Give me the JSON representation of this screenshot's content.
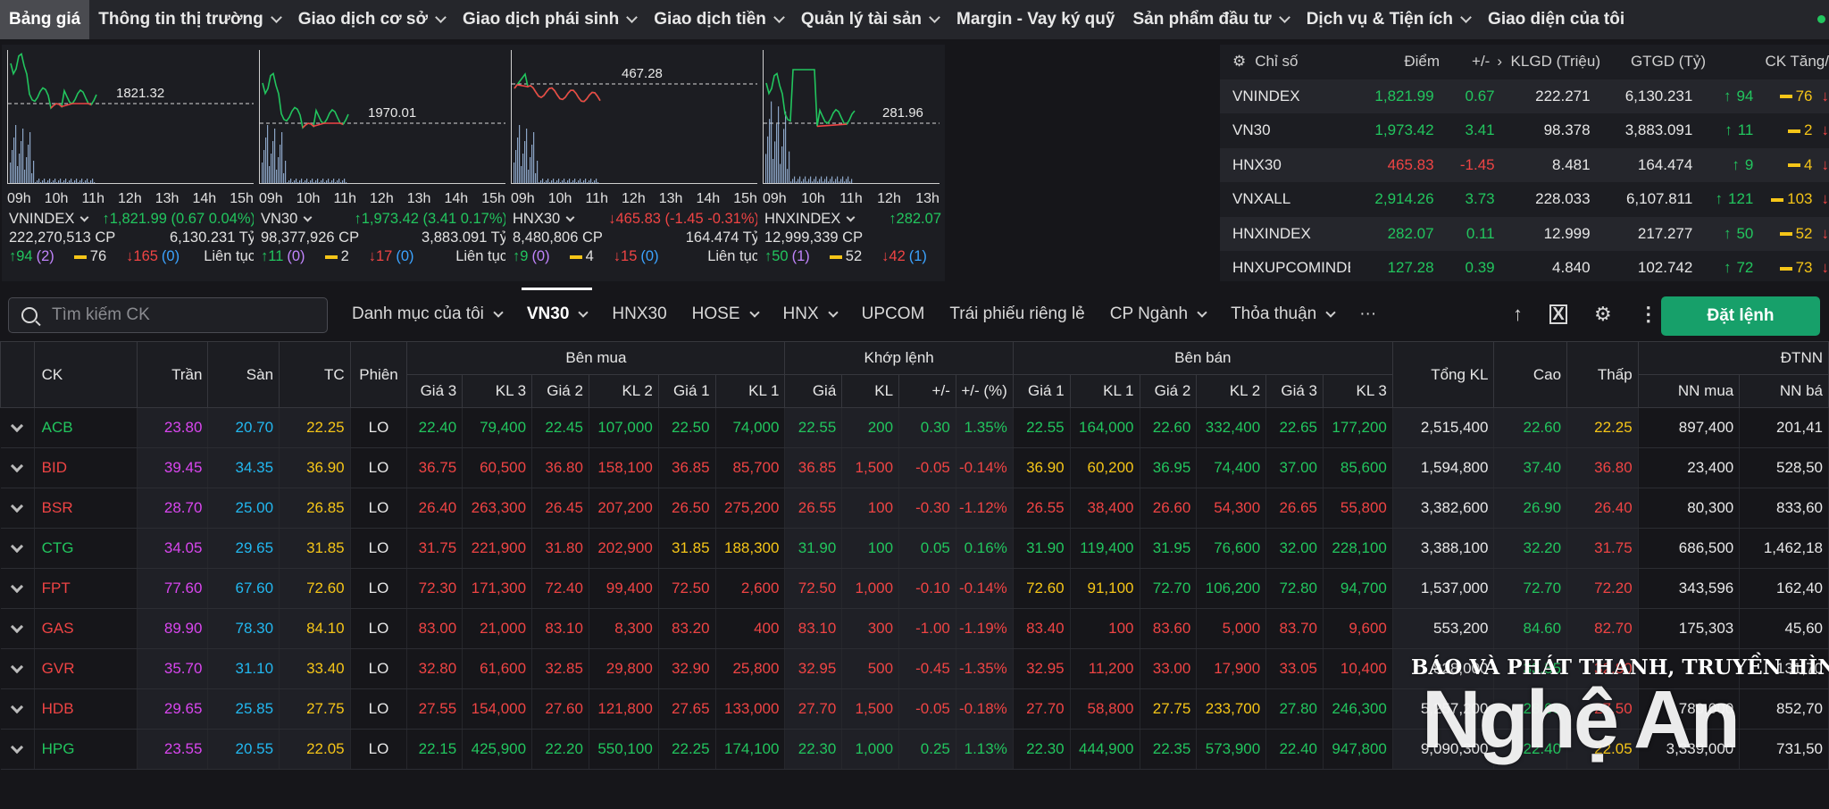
{
  "nav": {
    "items": [
      {
        "label": "Bảng giá",
        "has_menu": false
      },
      {
        "label": "Thông tin thị trường",
        "has_menu": true
      },
      {
        "label": "Giao dịch cơ sở",
        "has_menu": true
      },
      {
        "label": "Giao dịch phái sinh",
        "has_menu": true
      },
      {
        "label": "Giao dịch tiền",
        "has_menu": true
      },
      {
        "label": "Quản lý tài sản",
        "has_menu": true
      },
      {
        "label": "Margin - Vay ký quỹ",
        "has_menu": false
      },
      {
        "label": "Sản phẩm đầu tư",
        "has_menu": true
      },
      {
        "label": "Dịch vụ & Tiện ích",
        "has_menu": true
      },
      {
        "label": "Giao diện của tôi",
        "has_menu": false
      }
    ]
  },
  "mini_charts": [
    {
      "ref_value": "1821.32",
      "hours": [
        "09h",
        "10h",
        "11h",
        "12h",
        "13h",
        "14h",
        "15h"
      ],
      "index_name": "VNINDEX",
      "change_text": "1,821.99 (0.67 0.04%)",
      "direction": "up",
      "volume": "222,270,513 CP",
      "value": "6,130.231 Tỷ",
      "adv": "94",
      "adv_ceil": "(2)",
      "unch": "76",
      "dec": "165",
      "dec_floor": "(0)",
      "session": "Liên tục"
    },
    {
      "ref_value": "1970.01",
      "hours": [
        "09h",
        "10h",
        "11h",
        "12h",
        "13h",
        "14h",
        "15h"
      ],
      "index_name": "VN30",
      "change_text": "1,973.42 (3.41 0.17%)",
      "direction": "up",
      "volume": "98,377,926 CP",
      "value": "3,883.091 Tỷ",
      "adv": "11",
      "adv_ceil": "(0)",
      "unch": "2",
      "dec": "17",
      "dec_floor": "(0)",
      "session": "Liên tục"
    },
    {
      "ref_value": "467.28",
      "hours": [
        "09h",
        "10h",
        "11h",
        "12h",
        "13h",
        "14h",
        "15h"
      ],
      "index_name": "HNX30",
      "change_text": "465.83 (-1.45 -0.31%)",
      "direction": "down",
      "volume": "8,480,806 CP",
      "value": "164.474 Tỷ",
      "adv": "9",
      "adv_ceil": "(0)",
      "unch": "4",
      "dec": "15",
      "dec_floor": "(0)",
      "session": "Liên tục"
    },
    {
      "ref_value": "281.96",
      "hours": [
        "09h",
        "10h",
        "11h",
        "12h",
        "13h"
      ],
      "index_name": "HNXINDEX",
      "change_text": "282.07",
      "direction": "up",
      "volume": "12,999,339 CP",
      "value": "",
      "adv": "50",
      "adv_ceil": "(1)",
      "unch": "52",
      "dec": "42",
      "dec_floor": "(1)",
      "session": ""
    }
  ],
  "index_table": {
    "headers": [
      "Chỉ số",
      "Điểm",
      "+/-",
      "KLGD (Triệu)",
      "GTGD (Tỷ)",
      "CK Tăng/"
    ],
    "rows": [
      {
        "name": "VNINDEX",
        "points": "1,821.99",
        "change": "0.67",
        "dir": "up",
        "vol": "222.271",
        "val": "6,130.231",
        "adv": "94",
        "unch": "76"
      },
      {
        "name": "VN30",
        "points": "1,973.42",
        "change": "3.41",
        "dir": "up",
        "vol": "98.378",
        "val": "3,883.091",
        "adv": "11",
        "unch": "2"
      },
      {
        "name": "HNX30",
        "points": "465.83",
        "change": "-1.45",
        "dir": "down",
        "vol": "8.481",
        "val": "164.474",
        "adv": "9",
        "unch": "4"
      },
      {
        "name": "VNXALL",
        "points": "2,914.26",
        "change": "3.73",
        "dir": "up",
        "vol": "228.033",
        "val": "6,107.811",
        "adv": "121",
        "unch": "103"
      },
      {
        "name": "HNXINDEX",
        "points": "282.07",
        "change": "0.11",
        "dir": "up",
        "vol": "12.999",
        "val": "217.277",
        "adv": "50",
        "unch": "52"
      },
      {
        "name": "HNXUPCOMINDEX",
        "points": "127.28",
        "change": "0.39",
        "dir": "up",
        "vol": "4.840",
        "val": "102.742",
        "adv": "72",
        "unch": "73"
      }
    ]
  },
  "toolbar": {
    "search_placeholder": "Tìm kiếm CK",
    "tabs": [
      {
        "label": "Danh mục của tôi",
        "has_menu": true,
        "active": false
      },
      {
        "label": "VN30",
        "has_menu": true,
        "active": true
      },
      {
        "label": "HNX30",
        "has_menu": false,
        "active": false
      },
      {
        "label": "HOSE",
        "has_menu": true,
        "active": false
      },
      {
        "label": "HNX",
        "has_menu": true,
        "active": false
      },
      {
        "label": "UPCOM",
        "has_menu": false,
        "active": false
      },
      {
        "label": "Trái phiếu riêng lẻ",
        "has_menu": false,
        "active": false
      },
      {
        "label": "CP Ngành",
        "has_menu": true,
        "active": false
      },
      {
        "label": "Thỏa thuận",
        "has_menu": true,
        "active": false
      },
      {
        "label": "···",
        "has_menu": false,
        "active": false
      }
    ],
    "order_button": "Đặt lệnh"
  },
  "board": {
    "group_headers": {
      "buy": "Bên mua",
      "match": "Khớp lệnh",
      "sell": "Bên bán",
      "foreign": "ĐTNN"
    },
    "headers": {
      "symbol": "CK",
      "ceiling": "Trần",
      "floor": "Sàn",
      "ref": "TC",
      "session": "Phiên",
      "buy": [
        "Giá 3",
        "KL 3",
        "Giá 2",
        "KL 2",
        "Giá 1",
        "KL 1"
      ],
      "match": [
        "Giá",
        "KL",
        "+/-",
        "+/- (%)"
      ],
      "sell": [
        "Giá 1",
        "KL 1",
        "Giá 2",
        "KL 2",
        "Giá 3",
        "KL 3"
      ],
      "total_vol": "Tổng KL",
      "high": "Cao",
      "low": "Thấp",
      "foreign": [
        "NN mua",
        "NN bá"
      ]
    },
    "rows": [
      {
        "sym": "ACB",
        "sym_c": "up",
        "ceil": "23.80",
        "floor": "20.70",
        "ref": "22.25",
        "sess": "LO",
        "buy": [
          [
            "22.40",
            "up"
          ],
          [
            "79,400",
            "up"
          ],
          [
            "22.45",
            "up"
          ],
          [
            "107,000",
            "up"
          ],
          [
            "22.50",
            "up"
          ],
          [
            "74,000",
            "up"
          ]
        ],
        "match": [
          [
            "22.55",
            "up"
          ],
          [
            "200",
            "up"
          ],
          [
            "0.30",
            "up"
          ],
          [
            "1.35%",
            "up"
          ]
        ],
        "sell": [
          [
            "22.55",
            "up"
          ],
          [
            "164,000",
            "up"
          ],
          [
            "22.60",
            "up"
          ],
          [
            "332,400",
            "up"
          ],
          [
            "22.65",
            "up"
          ],
          [
            "177,200",
            "up"
          ]
        ],
        "total": "2,515,400",
        "high": [
          "22.60",
          "up"
        ],
        "low": [
          "22.25",
          "ref"
        ],
        "nn_buy": "897,400",
        "nn_sell": "201,41"
      },
      {
        "sym": "BID",
        "sym_c": "down",
        "ceil": "39.45",
        "floor": "34.35",
        "ref": "36.90",
        "sess": "LO",
        "buy": [
          [
            "36.75",
            "down"
          ],
          [
            "60,500",
            "down"
          ],
          [
            "36.80",
            "down"
          ],
          [
            "158,100",
            "down"
          ],
          [
            "36.85",
            "down"
          ],
          [
            "85,700",
            "down"
          ]
        ],
        "match": [
          [
            "36.85",
            "down"
          ],
          [
            "1,500",
            "down"
          ],
          [
            "-0.05",
            "down"
          ],
          [
            "-0.14%",
            "down"
          ]
        ],
        "sell": [
          [
            "36.90",
            "ref"
          ],
          [
            "60,200",
            "ref"
          ],
          [
            "36.95",
            "up"
          ],
          [
            "74,400",
            "up"
          ],
          [
            "37.00",
            "up"
          ],
          [
            "85,600",
            "up"
          ]
        ],
        "total": "1,594,800",
        "high": [
          "37.40",
          "up"
        ],
        "low": [
          "36.80",
          "down"
        ],
        "nn_buy": "23,400",
        "nn_sell": "528,50"
      },
      {
        "sym": "BSR",
        "sym_c": "down",
        "ceil": "28.70",
        "floor": "25.00",
        "ref": "26.85",
        "sess": "LO",
        "buy": [
          [
            "26.40",
            "down"
          ],
          [
            "263,300",
            "down"
          ],
          [
            "26.45",
            "down"
          ],
          [
            "207,200",
            "down"
          ],
          [
            "26.50",
            "down"
          ],
          [
            "275,200",
            "down"
          ]
        ],
        "match": [
          [
            "26.55",
            "down"
          ],
          [
            "100",
            "down"
          ],
          [
            "-0.30",
            "down"
          ],
          [
            "-1.12%",
            "down"
          ]
        ],
        "sell": [
          [
            "26.55",
            "down"
          ],
          [
            "38,400",
            "down"
          ],
          [
            "26.60",
            "down"
          ],
          [
            "54,300",
            "down"
          ],
          [
            "26.65",
            "down"
          ],
          [
            "55,800",
            "down"
          ]
        ],
        "total": "3,382,600",
        "high": [
          "26.90",
          "up"
        ],
        "low": [
          "26.40",
          "down"
        ],
        "nn_buy": "80,300",
        "nn_sell": "833,60"
      },
      {
        "sym": "CTG",
        "sym_c": "up",
        "ceil": "34.05",
        "floor": "29.65",
        "ref": "31.85",
        "sess": "LO",
        "buy": [
          [
            "31.75",
            "down"
          ],
          [
            "221,900",
            "down"
          ],
          [
            "31.80",
            "down"
          ],
          [
            "202,900",
            "down"
          ],
          [
            "31.85",
            "ref"
          ],
          [
            "188,300",
            "ref"
          ]
        ],
        "match": [
          [
            "31.90",
            "up"
          ],
          [
            "100",
            "up"
          ],
          [
            "0.05",
            "up"
          ],
          [
            "0.16%",
            "up"
          ]
        ],
        "sell": [
          [
            "31.90",
            "up"
          ],
          [
            "119,400",
            "up"
          ],
          [
            "31.95",
            "up"
          ],
          [
            "76,600",
            "up"
          ],
          [
            "32.00",
            "up"
          ],
          [
            "228,100",
            "up"
          ]
        ],
        "total": "3,388,100",
        "high": [
          "32.20",
          "up"
        ],
        "low": [
          "31.75",
          "down"
        ],
        "nn_buy": "686,500",
        "nn_sell": "1,462,18"
      },
      {
        "sym": "FPT",
        "sym_c": "down",
        "ceil": "77.60",
        "floor": "67.60",
        "ref": "72.60",
        "sess": "LO",
        "buy": [
          [
            "72.30",
            "down"
          ],
          [
            "171,300",
            "down"
          ],
          [
            "72.40",
            "down"
          ],
          [
            "99,400",
            "down"
          ],
          [
            "72.50",
            "down"
          ],
          [
            "2,600",
            "down"
          ]
        ],
        "match": [
          [
            "72.50",
            "down"
          ],
          [
            "1,000",
            "down"
          ],
          [
            "-0.10",
            "down"
          ],
          [
            "-0.14%",
            "down"
          ]
        ],
        "sell": [
          [
            "72.60",
            "ref"
          ],
          [
            "91,100",
            "ref"
          ],
          [
            "72.70",
            "up"
          ],
          [
            "106,200",
            "up"
          ],
          [
            "72.80",
            "up"
          ],
          [
            "94,700",
            "up"
          ]
        ],
        "total": "1,537,000",
        "high": [
          "72.70",
          "up"
        ],
        "low": [
          "72.20",
          "down"
        ],
        "nn_buy": "343,596",
        "nn_sell": "162,40"
      },
      {
        "sym": "GAS",
        "sym_c": "down",
        "ceil": "89.90",
        "floor": "78.30",
        "ref": "84.10",
        "sess": "LO",
        "buy": [
          [
            "83.00",
            "down"
          ],
          [
            "21,000",
            "down"
          ],
          [
            "83.10",
            "down"
          ],
          [
            "8,300",
            "down"
          ],
          [
            "83.20",
            "down"
          ],
          [
            "400",
            "down"
          ]
        ],
        "match": [
          [
            "83.10",
            "down"
          ],
          [
            "300",
            "down"
          ],
          [
            "-1.00",
            "down"
          ],
          [
            "-1.19%",
            "down"
          ]
        ],
        "sell": [
          [
            "83.40",
            "down"
          ],
          [
            "100",
            "down"
          ],
          [
            "83.60",
            "down"
          ],
          [
            "5,000",
            "down"
          ],
          [
            "83.70",
            "down"
          ],
          [
            "9,600",
            "down"
          ]
        ],
        "total": "553,200",
        "high": [
          "84.60",
          "up"
        ],
        "low": [
          "82.70",
          "down"
        ],
        "nn_buy": "175,303",
        "nn_sell": "45,60"
      },
      {
        "sym": "GVR",
        "sym_c": "down",
        "ceil": "35.70",
        "floor": "31.10",
        "ref": "33.40",
        "sess": "LO",
        "buy": [
          [
            "32.80",
            "down"
          ],
          [
            "61,600",
            "down"
          ],
          [
            "32.85",
            "down"
          ],
          [
            "29,800",
            "down"
          ],
          [
            "32.90",
            "down"
          ],
          [
            "25,800",
            "down"
          ]
        ],
        "match": [
          [
            "32.95",
            "down"
          ],
          [
            "500",
            "down"
          ],
          [
            "-0.45",
            "down"
          ],
          [
            "-1.35%",
            "down"
          ]
        ],
        "sell": [
          [
            "32.95",
            "down"
          ],
          [
            "11,200",
            "down"
          ],
          [
            "33.00",
            "down"
          ],
          [
            "17,900",
            "down"
          ],
          [
            "33.05",
            "down"
          ],
          [
            "10,400",
            "down"
          ]
        ],
        "total": "828,000",
        "high": [
          "33.55",
          "up"
        ],
        "low": [
          "32.80",
          "down"
        ],
        "nn_buy": "",
        "nn_sell": "131,70"
      },
      {
        "sym": "HDB",
        "sym_c": "down",
        "ceil": "29.65",
        "floor": "25.85",
        "ref": "27.75",
        "sess": "LO",
        "buy": [
          [
            "27.55",
            "down"
          ],
          [
            "154,000",
            "down"
          ],
          [
            "27.60",
            "down"
          ],
          [
            "121,800",
            "down"
          ],
          [
            "27.65",
            "down"
          ],
          [
            "133,000",
            "down"
          ]
        ],
        "match": [
          [
            "27.70",
            "down"
          ],
          [
            "1,500",
            "down"
          ],
          [
            "-0.05",
            "down"
          ],
          [
            "-0.18%",
            "down"
          ]
        ],
        "sell": [
          [
            "27.70",
            "down"
          ],
          [
            "58,800",
            "down"
          ],
          [
            "27.75",
            "ref"
          ],
          [
            "233,700",
            "ref"
          ],
          [
            "27.80",
            "up"
          ],
          [
            "246,300",
            "up"
          ]
        ],
        "total": "5,257,200",
        "high": [
          "28.00",
          "up"
        ],
        "low": [
          "27.50",
          "down"
        ],
        "nn_buy": "789,000",
        "nn_sell": "852,70"
      },
      {
        "sym": "HPG",
        "sym_c": "up",
        "ceil": "23.55",
        "floor": "20.55",
        "ref": "22.05",
        "sess": "LO",
        "buy": [
          [
            "22.15",
            "up"
          ],
          [
            "425,900",
            "up"
          ],
          [
            "22.20",
            "up"
          ],
          [
            "550,100",
            "up"
          ],
          [
            "22.25",
            "up"
          ],
          [
            "174,100",
            "up"
          ]
        ],
        "match": [
          [
            "22.30",
            "up"
          ],
          [
            "1,000",
            "up"
          ],
          [
            "0.25",
            "up"
          ],
          [
            "1.13%",
            "up"
          ]
        ],
        "sell": [
          [
            "22.30",
            "up"
          ],
          [
            "444,900",
            "up"
          ],
          [
            "22.35",
            "up"
          ],
          [
            "573,900",
            "up"
          ],
          [
            "22.40",
            "up"
          ],
          [
            "947,800",
            "up"
          ]
        ],
        "total": "9,090,300",
        "high": [
          "22.40",
          "up"
        ],
        "low": [
          "22.05",
          "ref"
        ],
        "nn_buy": "3,339,000",
        "nn_sell": "731,50"
      }
    ]
  },
  "watermark": {
    "line1": "BÁO VÀ PHÁT THANH, TRUYỀN HÌNH",
    "line2": "Nghệ An"
  },
  "colors": {
    "up": "#22c55e",
    "down": "#ef4444",
    "ref": "#f5c518",
    "ceiling": "#d946ef",
    "floor": "#22b8f0",
    "accent": "#17a06a"
  }
}
